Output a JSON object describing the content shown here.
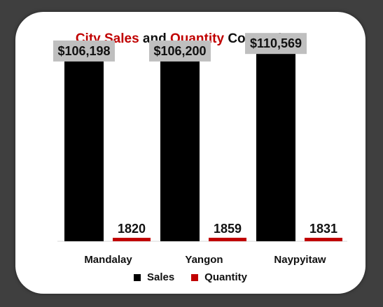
{
  "title": {
    "part1": "City Sales",
    "part2": " and ",
    "part3": "Quantity",
    "part4": " Comparison"
  },
  "chart_data": {
    "type": "bar",
    "title": "City Sales and Quantity Comparison",
    "categories": [
      "Mandalay",
      "Yangon",
      "Naypyitaw"
    ],
    "series": [
      {
        "name": "Sales",
        "values": [
          106198,
          106200,
          110569
        ],
        "labels": [
          "$106,198",
          "$106,200",
          "$110,569"
        ],
        "color": "#000000"
      },
      {
        "name": "Quantity",
        "values": [
          1820,
          1859,
          1831
        ],
        "labels": [
          "1820",
          "1859",
          "1831"
        ],
        "color": "#c00000"
      }
    ],
    "ylim": [
      0,
      120000
    ],
    "grid": false,
    "legend_position": "bottom"
  },
  "colors": {
    "background": "#3f3f3f",
    "card": "#ffffff",
    "accent": "#c00000",
    "label_box": "#bfbfbf"
  }
}
